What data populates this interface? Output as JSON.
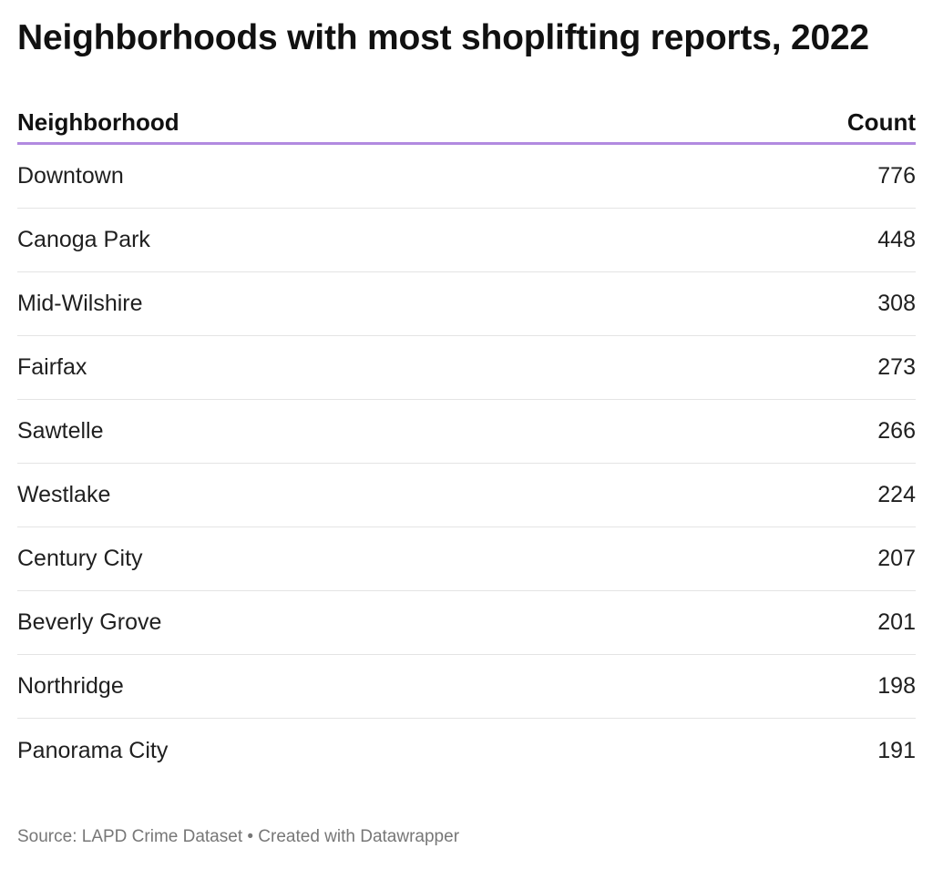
{
  "chart_data": {
    "type": "table",
    "title": "Neighborhoods with most shoplifting reports, 2022",
    "columns": [
      "Neighborhood",
      "Count"
    ],
    "rows": [
      {
        "neighborhood": "Downtown",
        "count": 776
      },
      {
        "neighborhood": "Canoga Park",
        "count": 448
      },
      {
        "neighborhood": "Mid-Wilshire",
        "count": 308
      },
      {
        "neighborhood": "Fairfax",
        "count": 273
      },
      {
        "neighborhood": "Sawtelle",
        "count": 266
      },
      {
        "neighborhood": "Westlake",
        "count": 224
      },
      {
        "neighborhood": "Century City",
        "count": 207
      },
      {
        "neighborhood": "Beverly Grove",
        "count": 201
      },
      {
        "neighborhood": "Northridge",
        "count": 198
      },
      {
        "neighborhood": "Panorama City",
        "count": 191
      }
    ],
    "source": "Source: LAPD Crime Dataset • Created with Datawrapper"
  },
  "colors": {
    "header_rule": "#b28ae0",
    "row_rule": "#e4e4e4",
    "text": "#1f1f1f",
    "source_text": "#777777"
  }
}
